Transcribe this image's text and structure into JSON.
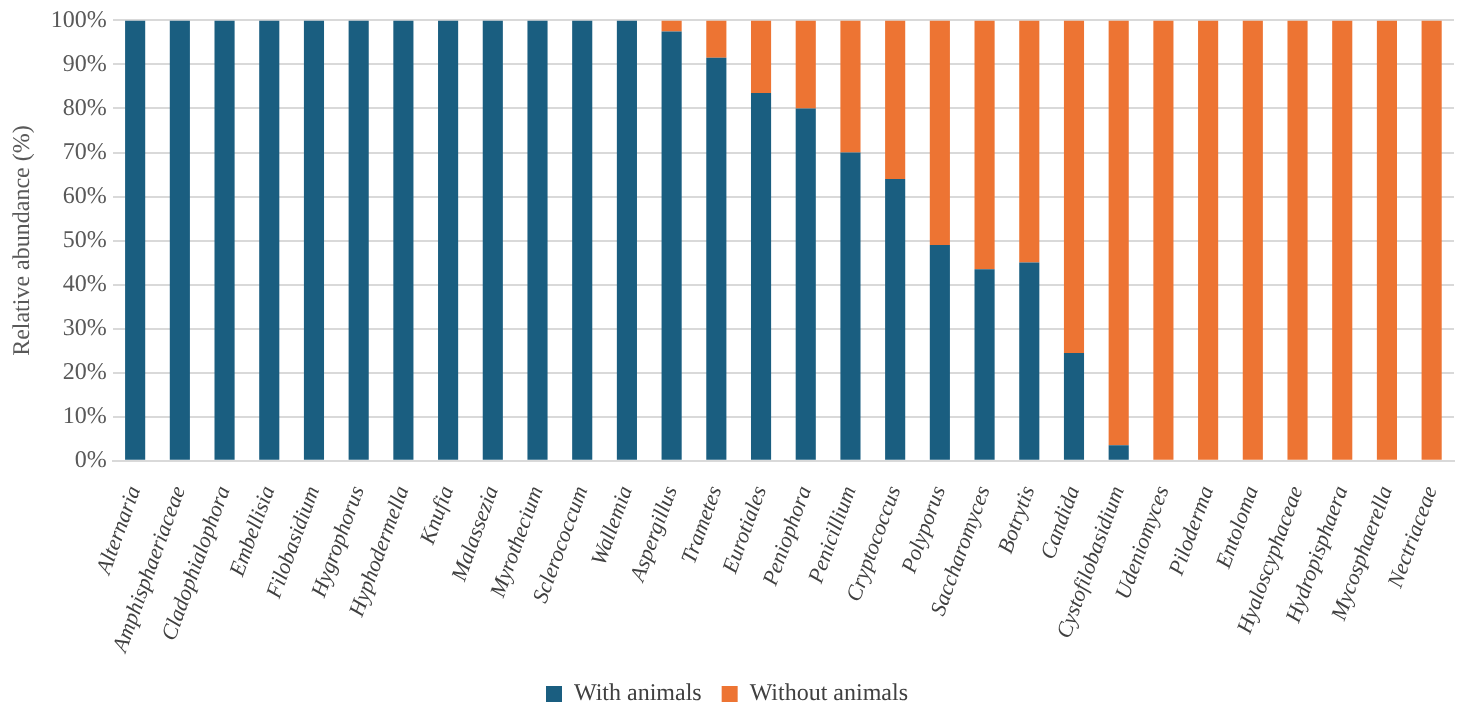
{
  "chart_data": {
    "type": "bar",
    "stacked": true,
    "ylabel": "Relative abundance (%)",
    "categories": [
      "Alternaria",
      "Amphisphaeriaceae",
      "Cladophialophora",
      "Embellisia",
      "Filobasidium",
      "Hygrophorus",
      "Hyphodermella",
      "Knufia",
      "Malassezia",
      "Myrothecium",
      "Sclerococcum",
      "Wallemia",
      "Aspergillus",
      "Trametes",
      "Eurotiales",
      "Peniophora",
      "Penicillium",
      "Cryptococcus",
      "Polyporus",
      "Saccharomyces",
      "Botrytis",
      "Candida",
      "Cystofilobasidium",
      "Udeniomyces",
      "Piloderma",
      "Entoloma",
      "Hyaloscyphaceae",
      "Hydropisphaera",
      "Mycosphaerella",
      "Nectriaceae"
    ],
    "series": [
      {
        "name": "With animals",
        "color": "#1a5e80",
        "values": [
          100,
          100,
          100,
          100,
          100,
          100,
          100,
          100,
          100,
          100,
          100,
          100,
          97.5,
          91.5,
          83.5,
          80,
          70,
          64,
          49,
          43.5,
          45,
          24.5,
          3.5,
          0,
          0,
          0,
          0,
          0,
          0,
          0
        ]
      },
      {
        "name": "Without animals",
        "color": "#ed7433",
        "values": [
          0,
          0,
          0,
          0,
          0,
          0,
          0,
          0,
          0,
          0,
          0,
          0,
          2.5,
          8.5,
          16.5,
          20,
          30,
          36,
          51,
          56.5,
          55,
          75.5,
          96.5,
          100,
          100,
          100,
          100,
          100,
          100,
          100
        ]
      }
    ],
    "ylim": [
      0,
      100
    ],
    "yticks": [
      {
        "value": 0,
        "label": "0%"
      },
      {
        "value": 10,
        "label": "10%"
      },
      {
        "value": 20,
        "label": "20%"
      },
      {
        "value": 30,
        "label": "30%"
      },
      {
        "value": 40,
        "label": "40%"
      },
      {
        "value": 50,
        "label": "50%"
      },
      {
        "value": 60,
        "label": "60%"
      },
      {
        "value": 70,
        "label": "70%"
      },
      {
        "value": 80,
        "label": "80%"
      },
      {
        "value": 90,
        "label": "90%"
      },
      {
        "value": 100,
        "label": "100%"
      }
    ],
    "grid": "y",
    "legend": "bottom"
  }
}
